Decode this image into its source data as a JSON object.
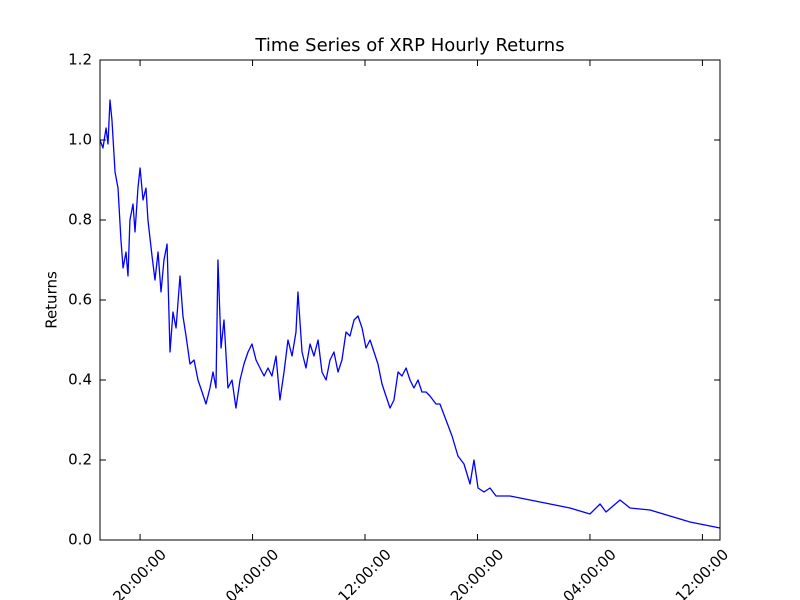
{
  "chart_data": {
    "type": "line",
    "title": "Time Series of XRP Hourly Returns",
    "y_label": "Returns",
    "color": "#0000ff",
    "x": [
      15.9,
      16.11,
      16.33,
      16.47,
      16.61,
      16.75,
      16.97,
      17.18,
      17.39,
      17.54,
      17.75,
      17.89,
      18.03,
      18.25,
      18.39,
      18.6,
      18.75,
      18.96,
      19.17,
      19.31,
      19.6,
      19.81,
      20.03,
      20.24,
      20.45,
      20.67,
      20.88,
      21.09,
      21.31,
      21.59,
      21.8,
      22.02,
      22.3,
      22.59,
      22.87,
      23.16,
      23.44,
      23.72,
      23.94,
      24.15,
      24.29,
      24.51,
      24.72,
      25.0,
      25.29,
      25.57,
      25.86,
      26.14,
      26.43,
      26.71,
      27.0,
      27.28,
      27.57,
      27.85,
      28.13,
      28.42,
      28.7,
      28.99,
      29.27,
      29.56,
      29.84,
      29.98,
      30.27,
      30.55,
      30.84,
      31.12,
      31.41,
      31.69,
      31.98,
      32.26,
      32.54,
      32.83,
      33.11,
      33.4,
      33.68,
      33.97,
      34.25,
      34.54,
      34.82,
      35.11,
      35.39,
      35.67,
      35.96,
      36.24,
      36.53,
      36.81,
      37.1,
      37.38,
      37.67,
      37.95,
      38.23,
      38.52,
      38.8,
      39.09,
      39.37,
      39.8,
      40.08,
      40.51,
      40.94,
      41.36,
      41.79,
      42.22,
      42.5,
      42.79,
      43.21,
      43.64,
      44.07,
      45.06,
      46.49,
      47.91,
      49.33,
      50.75,
      51.47,
      51.89,
      52.89,
      53.6,
      55.02,
      56.44,
      57.87,
      59.29,
      60.0
    ],
    "values": [
      1.0,
      0.98,
      1.03,
      0.99,
      1.1,
      1.05,
      0.92,
      0.88,
      0.75,
      0.68,
      0.72,
      0.66,
      0.8,
      0.84,
      0.77,
      0.88,
      0.93,
      0.85,
      0.88,
      0.8,
      0.71,
      0.65,
      0.72,
      0.62,
      0.7,
      0.74,
      0.47,
      0.57,
      0.53,
      0.66,
      0.56,
      0.51,
      0.44,
      0.45,
      0.4,
      0.37,
      0.34,
      0.38,
      0.42,
      0.38,
      0.7,
      0.48,
      0.55,
      0.38,
      0.4,
      0.33,
      0.4,
      0.44,
      0.47,
      0.49,
      0.45,
      0.43,
      0.41,
      0.43,
      0.41,
      0.46,
      0.35,
      0.42,
      0.5,
      0.46,
      0.52,
      0.62,
      0.47,
      0.43,
      0.49,
      0.46,
      0.5,
      0.42,
      0.4,
      0.45,
      0.47,
      0.42,
      0.45,
      0.52,
      0.51,
      0.55,
      0.56,
      0.53,
      0.48,
      0.5,
      0.47,
      0.44,
      0.39,
      0.36,
      0.33,
      0.35,
      0.42,
      0.41,
      0.43,
      0.4,
      0.38,
      0.4,
      0.37,
      0.37,
      0.36,
      0.34,
      0.34,
      0.3,
      0.26,
      0.21,
      0.19,
      0.14,
      0.2,
      0.13,
      0.12,
      0.13,
      0.11,
      0.11,
      0.1,
      0.09,
      0.08,
      0.065,
      0.09,
      0.07,
      0.1,
      0.08,
      0.075,
      0.06,
      0.045,
      0.035,
      0.03
    ],
    "xlim": [
      15.9,
      60.0
    ],
    "xticks": [
      {
        "value": 18.75,
        "label": "20:00:00"
      },
      {
        "value": 26.75,
        "label": "04:00:00"
      },
      {
        "value": 34.75,
        "label": "12:00:00"
      },
      {
        "value": 42.75,
        "label": "20:00:00"
      },
      {
        "value": 50.75,
        "label": "04:00:00"
      },
      {
        "value": 58.75,
        "label": "12:00:00"
      }
    ],
    "ylim": [
      0,
      1.2
    ],
    "yticks": [
      {
        "value": 0,
        "label": "0.0"
      },
      0.2,
      0.4,
      0.6,
      0.8,
      {
        "value": 1,
        "label": "1.0"
      },
      1.2
    ]
  }
}
